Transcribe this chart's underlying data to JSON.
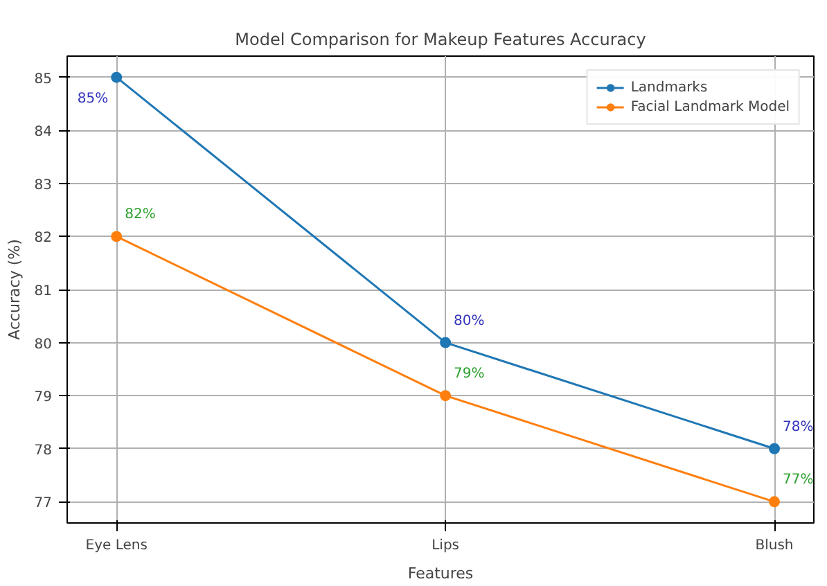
{
  "chart_data": {
    "type": "line",
    "title": "Model Comparison for Makeup Features Accuracy",
    "xlabel": "Features",
    "ylabel": "Accuracy (%)",
    "categories": [
      "Eye Lens",
      "Lips",
      "Blush"
    ],
    "series": [
      {
        "name": "Landmarks",
        "color": "#1f77b4",
        "values": [
          85,
          80,
          78
        ],
        "value_labels": [
          "85%",
          "80%",
          "78%"
        ]
      },
      {
        "name": "Facial Landmark Model",
        "color": "#ff7f0e",
        "values": [
          82,
          79,
          77
        ],
        "value_labels": [
          "82%",
          "79%",
          "77%"
        ]
      }
    ],
    "ylim": [
      76.6,
      85.4
    ],
    "yticks": [
      77,
      78,
      79,
      80,
      81,
      82,
      83,
      84,
      85
    ],
    "grid": true,
    "legend": "top right",
    "marker": "circle",
    "line_style": "solid"
  }
}
